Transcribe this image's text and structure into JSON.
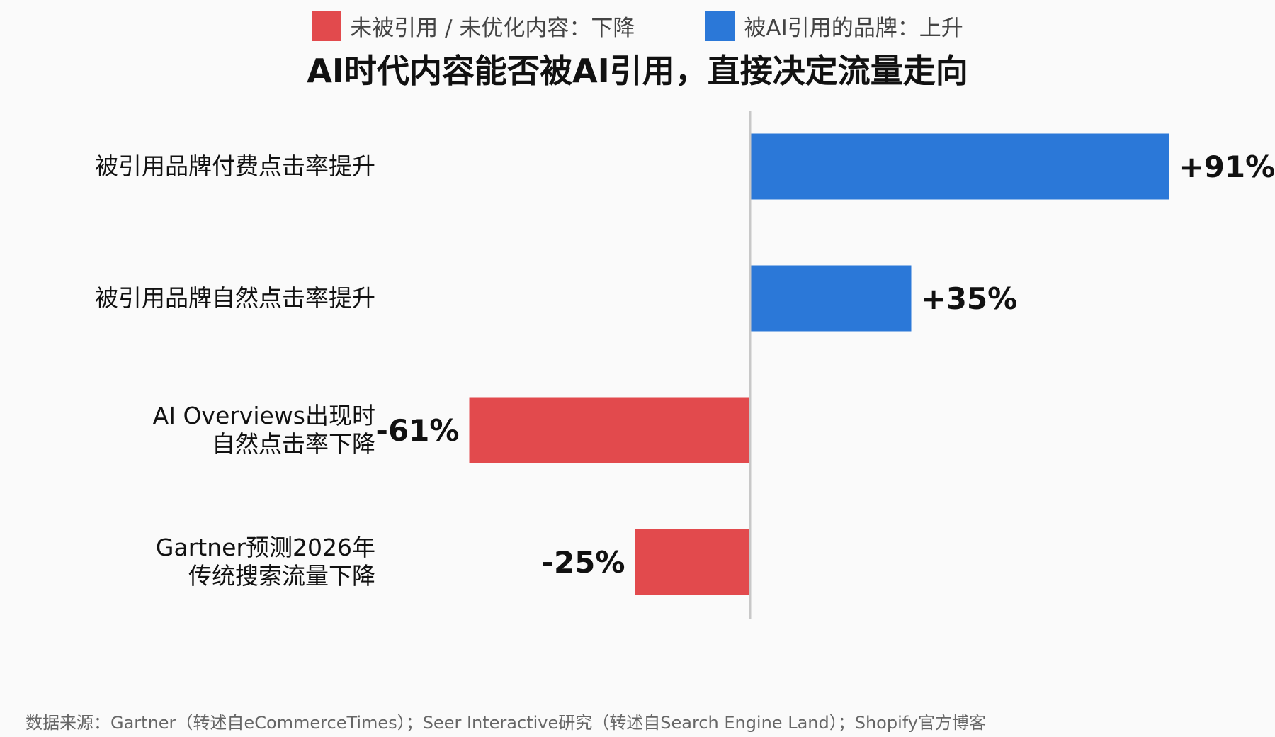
{
  "chart_data": {
    "type": "bar",
    "orientation": "horizontal",
    "title": "AI时代内容能否被AI引用，直接决定流量走向",
    "legend": [
      {
        "name": "未被引用 / 未优化内容：下降",
        "color": "#e24a4d"
      },
      {
        "name": "被AI引用的品牌：上升",
        "color": "#2b78d8"
      }
    ],
    "legend_position": "top",
    "categories": [
      [
        "被引用品牌付费点击率提升"
      ],
      [
        "被引用品牌自然点击率提升"
      ],
      [
        "AI Overviews出现时",
        "自然点击率下降"
      ],
      [
        "Gartner预测2026年",
        "传统搜索流量下降"
      ]
    ],
    "values": [
      91,
      35,
      -61,
      -25
    ],
    "value_labels": [
      "+91%",
      "+35%",
      "-61%",
      "-25%"
    ],
    "unit": "%",
    "xlim": [
      -61,
      91
    ],
    "grid": false,
    "positive_color": "#2b78d8",
    "negative_color": "#e24a4d",
    "axis_color": "#c8c8c8",
    "source": "数据来源：Gartner（转述自eCommerceTimes）；Seer Interactive研究（转述自Search Engine Land）；Shopify官方博客"
  }
}
